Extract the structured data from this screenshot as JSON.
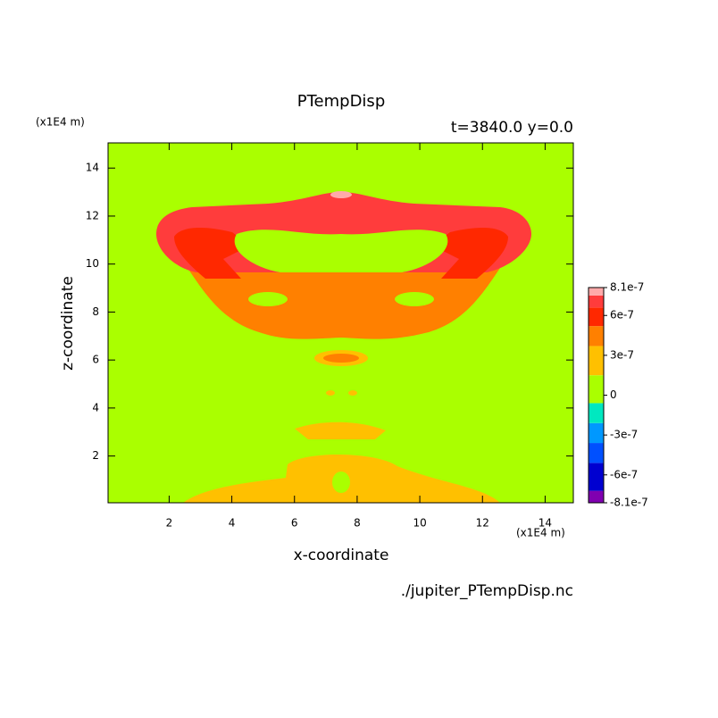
{
  "chart_data": {
    "type": "contour",
    "title": "PTempDisp",
    "subtitle": "t=3840.0 y=0.0",
    "x_label": "x-coordinate",
    "y_label": "z-coordinate",
    "x_unit": "(x1E4 m)",
    "y_unit": "(x1E4 m)",
    "footer": "./jupiter_PTempDisp.nc",
    "xlim": [
      0.05,
      14.9
    ],
    "ylim": [
      0.05,
      15.05
    ],
    "xticks": [
      2,
      4,
      6,
      8,
      10,
      12,
      14
    ],
    "yticks": [
      2,
      4,
      6,
      8,
      10,
      12,
      14
    ],
    "levels": [
      -8.1e-07,
      -7.2e-07,
      -5.1e-07,
      -3.6e-07,
      -2.1e-07,
      -6e-08,
      1.5e-07,
      3.7e-07,
      5.2e-07,
      6.6e-07,
      7.5e-07,
      8.1e-07
    ],
    "colors": [
      "#8000b0",
      "#0000d0",
      "#0050ff",
      "#0098ff",
      "#00e8c0",
      "#aaff00",
      "#ffc000",
      "#ff8000",
      "#ff2800",
      "#ff3c3c",
      "#ffaaaa"
    ],
    "clim": [
      -8.1e-07,
      8.1e-07
    ],
    "cticks": [
      -8.1e-07,
      -6e-07,
      -3e-07,
      0,
      3e-07,
      6e-07,
      8.1e-07
    ]
  }
}
